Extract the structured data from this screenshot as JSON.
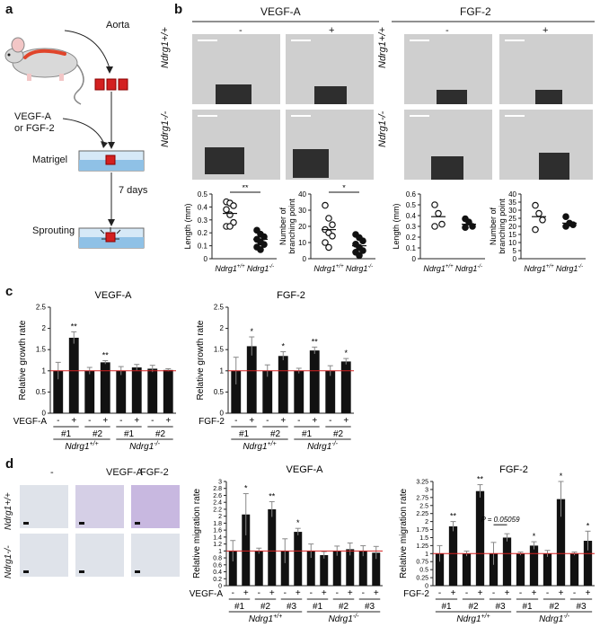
{
  "panels": {
    "a": "a",
    "b": "b",
    "c": "c",
    "d": "d"
  },
  "panel_a": {
    "aorta_label": "Aorta",
    "treatment_line1": "VEGF-A",
    "treatment_line2": "or FGF-2",
    "matrigel_label": "Matrigel",
    "duration_label": "7 days",
    "sprouting_label": "Sprouting"
  },
  "panel_b": {
    "vegf_header": "VEGF-A",
    "fgf_header": "FGF-2",
    "minus": "-",
    "plus": "+",
    "wt_row": "Ndrg1+/+",
    "ko_row": "Ndrg1-/-",
    "chart_data": [
      {
        "type": "scatter",
        "ylabel": "Length (mm)",
        "categories": [
          "Ndrg1+/+",
          "Ndrg1-/-"
        ],
        "yticks": [
          "0",
          "0.1",
          "0.2",
          "0.3",
          "0.4",
          "0.5"
        ],
        "ylim": [
          0,
          0.5
        ],
        "significance": "**",
        "series": [
          {
            "values": [
              0.44,
              0.43,
              0.41,
              0.38,
              0.34,
              0.28,
              0.25,
              0.25
            ],
            "filled": false
          },
          {
            "values": [
              0.22,
              0.19,
              0.17,
              0.15,
              0.13,
              0.11,
              0.09,
              0.07
            ],
            "filled": true
          }
        ],
        "means": [
          0.35,
          0.15
        ]
      },
      {
        "type": "scatter",
        "ylabel": "Number of branching point",
        "categories": [
          "Ndrg1+/+",
          "Ndrg1-/-"
        ],
        "yticks": [
          "0",
          "10",
          "20",
          "30",
          "40"
        ],
        "ylim": [
          0,
          40
        ],
        "significance": "*",
        "series": [
          {
            "values": [
              33,
              25,
              21,
              18,
              16,
              14,
              10,
              7
            ],
            "filled": false
          },
          {
            "values": [
              15,
              13,
              11,
              9,
              7,
              5,
              4,
              2
            ],
            "filled": true
          }
        ],
        "means": [
          18,
          8
        ]
      },
      {
        "type": "scatter",
        "ylabel": "Length (mm)",
        "categories": [
          "Ndrg1+/+",
          "Ndrg1-/-"
        ],
        "yticks": [
          "0",
          "0.1",
          "0.2",
          "0.3",
          "0.4",
          "0.5",
          "0.6"
        ],
        "ylim": [
          0,
          0.6
        ],
        "significance": "",
        "series": [
          {
            "values": [
              0.5,
              0.42,
              0.32,
              0.3
            ],
            "filled": false
          },
          {
            "values": [
              0.37,
              0.34,
              0.3,
              0.29
            ],
            "filled": true
          }
        ],
        "means": [
          0.39,
          0.32
        ]
      },
      {
        "type": "scatter",
        "ylabel": "Number of branching point",
        "categories": [
          "Ndrg1+/+",
          "Ndrg1-/-"
        ],
        "yticks": [
          "0",
          "5",
          "10",
          "15",
          "20",
          "25",
          "30",
          "35",
          "40"
        ],
        "ylim": [
          0,
          40
        ],
        "significance": "",
        "series": [
          {
            "values": [
              33,
              28,
              24,
              18
            ],
            "filled": false
          },
          {
            "values": [
              26,
              22,
              21,
              20
            ],
            "filled": true
          }
        ],
        "means": [
          26,
          22
        ]
      }
    ]
  },
  "panel_c": {
    "chart_data": [
      {
        "type": "bar",
        "title": "VEGF-A",
        "ylabel": "Relative growth rate",
        "yticks": [
          "0",
          "0.5",
          "1",
          "1.5",
          "2",
          "2.5"
        ],
        "ylim": [
          0,
          2.5
        ],
        "reference_line": 1,
        "treatment_label": "VEGF-A",
        "signs": [
          "-",
          "+",
          "-",
          "+",
          "-",
          "+",
          "-",
          "+"
        ],
        "clones": [
          "#1",
          "#2",
          "#1",
          "#2"
        ],
        "groups": [
          "Ndrg1+/+",
          "Ndrg1-/-"
        ],
        "values": [
          1.0,
          1.78,
          1.0,
          1.2,
          1.0,
          1.08,
          1.05,
          1.02
        ],
        "errors": [
          0.2,
          0.14,
          0.08,
          0.04,
          0.1,
          0.07,
          0.08,
          0.03
        ],
        "significance": [
          "",
          "**",
          "",
          "**",
          "",
          "",
          "",
          ""
        ]
      },
      {
        "type": "bar",
        "title": "FGF-2",
        "ylabel": "Relative growth rate",
        "yticks": [
          "0",
          "0.5",
          "1",
          "1.5",
          "2",
          "2.5"
        ],
        "ylim": [
          0,
          2.5
        ],
        "reference_line": 1,
        "treatment_label": "FGF-2",
        "signs": [
          "-",
          "+",
          "-",
          "+",
          "-",
          "+",
          "-",
          "+"
        ],
        "clones": [
          "#1",
          "#2",
          "#1",
          "#2"
        ],
        "groups": [
          "Ndrg1+/+",
          "Ndrg1-/-"
        ],
        "values": [
          1.0,
          1.58,
          1.0,
          1.35,
          1.0,
          1.48,
          1.0,
          1.22
        ],
        "errors": [
          0.32,
          0.22,
          0.14,
          0.1,
          0.06,
          0.08,
          0.12,
          0.07
        ],
        "significance": [
          "",
          "*",
          "",
          "*",
          "",
          "**",
          "",
          "*"
        ]
      }
    ]
  },
  "panel_d": {
    "col_headers": [
      "-",
      "VEGF-A",
      "FGF-2"
    ],
    "wt_row": "Ndrg1+/+",
    "ko_row": "Ndrg1-/-",
    "chart_data": [
      {
        "type": "bar",
        "title": "VEGF-A",
        "ylabel": "Relative migration rate",
        "yticks": [
          "0",
          "0.2",
          "0.4",
          "0.6",
          "0.8",
          "1",
          "1.2",
          "1.4",
          "1.6",
          "1.8",
          "2",
          "2.2",
          "2.4",
          "2.6",
          "2.8",
          "3"
        ],
        "ylim": [
          0,
          3
        ],
        "reference_line": 1,
        "treatment_label": "VEGF-A",
        "signs": [
          "-",
          "+",
          "-",
          "+",
          "-",
          "+",
          "-",
          "+",
          "-",
          "+",
          "-",
          "+"
        ],
        "clones": [
          "#1",
          "#2",
          "#3",
          "#1",
          "#2",
          "#3"
        ],
        "groups": [
          "Ndrg1+/+",
          "Ndrg1-/-"
        ],
        "values": [
          1.0,
          2.05,
          1.0,
          2.2,
          1.0,
          1.55,
          1.0,
          0.88,
          1.0,
          1.05,
          1.0,
          0.95
        ],
        "errors": [
          0.3,
          0.6,
          0.08,
          0.22,
          0.35,
          0.1,
          0.2,
          0.1,
          0.14,
          0.18,
          0.15,
          0.18
        ],
        "significance": [
          "",
          "*",
          "",
          "**",
          "",
          "*",
          "",
          "",
          "",
          "",
          "",
          ""
        ]
      },
      {
        "type": "bar",
        "title": "FGF-2",
        "ylabel": "Relative migration rate",
        "yticks": [
          "0",
          "0.25",
          "0.5",
          "0.75",
          "1",
          "1.25",
          "1.5",
          "1.75",
          "2",
          "2.25",
          "2.5",
          "2.75",
          "3",
          "3.25"
        ],
        "ylim": [
          0,
          3.25
        ],
        "reference_line": 1,
        "treatment_label": "FGF-2",
        "signs": [
          "-",
          "+",
          "-",
          "+",
          "-",
          "+",
          "-",
          "+",
          "-",
          "+",
          "-",
          "+"
        ],
        "clones": [
          "#1",
          "#2",
          "#3",
          "#1",
          "#2",
          "#3"
        ],
        "groups": [
          "Ndrg1+/+",
          "Ndrg1-/-"
        ],
        "values": [
          1.0,
          1.85,
          1.0,
          2.95,
          1.0,
          1.5,
          1.0,
          1.25,
          1.0,
          2.7,
          1.0,
          1.4
        ],
        "errors": [
          0.25,
          0.15,
          0.08,
          0.2,
          0.35,
          0.12,
          0.05,
          0.12,
          0.1,
          0.55,
          0.05,
          0.3
        ],
        "significance": [
          "",
          "**",
          "",
          "**",
          "",
          "",
          "",
          "*",
          "",
          "*",
          "",
          "*"
        ],
        "p_annotation": "P = 0.05059"
      }
    ]
  }
}
